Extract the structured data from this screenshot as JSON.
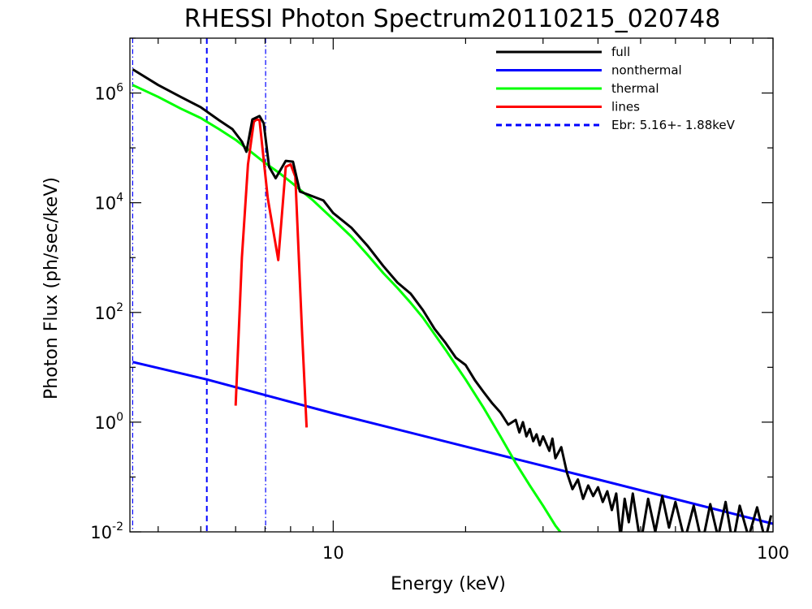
{
  "chart_data": {
    "type": "line",
    "title": "RHESSI Photon Spectrum20110215_020748",
    "xlabel": "Energy (keV)",
    "ylabel": "Photon Flux (ph/sec/keV)",
    "xscale": "log",
    "yscale": "log",
    "xlim": [
      3.45,
      100
    ],
    "ylim": [
      0.01,
      10000000.0
    ],
    "grid": false,
    "legend_position": "top-right",
    "x_ticks": [
      {
        "value": 10,
        "label": "10"
      },
      {
        "value": 100,
        "label": "100"
      }
    ],
    "y_ticks": [
      {
        "value": 0.01,
        "base": "10",
        "exp": "-2"
      },
      {
        "value": 1,
        "base": "10",
        "exp": "0"
      },
      {
        "value": 100,
        "base": "10",
        "exp": "2"
      },
      {
        "value": 10000,
        "base": "10",
        "exp": "4"
      },
      {
        "value": 1000000,
        "base": "10",
        "exp": "6"
      }
    ],
    "series": [
      {
        "name": "full",
        "color": "#000000",
        "points": [
          [
            3.5,
            2700000.0
          ],
          [
            4.0,
            1400000.0
          ],
          [
            4.5,
            850000.0
          ],
          [
            5.0,
            550000.0
          ],
          [
            5.5,
            320000.0
          ],
          [
            5.9,
            220000.0
          ],
          [
            6.2,
            130000.0
          ],
          [
            6.35,
            85000.0
          ],
          [
            6.55,
            330000.0
          ],
          [
            6.8,
            380000.0
          ],
          [
            6.95,
            280000.0
          ],
          [
            7.15,
            45000.0
          ],
          [
            7.4,
            28000.0
          ],
          [
            7.8,
            58000.0
          ],
          [
            8.1,
            56000.0
          ],
          [
            8.4,
            16000.0
          ],
          [
            9.0,
            13000.0
          ],
          [
            9.5,
            11000.0
          ],
          [
            10.0,
            6500.0
          ],
          [
            11.0,
            3500.0
          ],
          [
            12.0,
            1600.0
          ],
          [
            13.0,
            700
          ],
          [
            14.0,
            350
          ],
          [
            15.0,
            220
          ],
          [
            16.0,
            110
          ],
          [
            17.0,
            50
          ],
          [
            18.0,
            28
          ],
          [
            19.0,
            15
          ],
          [
            20.0,
            11
          ],
          [
            21.0,
            5.8
          ],
          [
            22.0,
            3.5
          ],
          [
            23.0,
            2.2
          ],
          [
            24.0,
            1.5
          ],
          [
            25.0,
            0.9
          ],
          [
            26.0,
            1.1
          ],
          [
            26.5,
            0.65
          ],
          [
            27.0,
            1.0
          ],
          [
            27.5,
            0.55
          ],
          [
            28.0,
            0.75
          ],
          [
            28.5,
            0.45
          ],
          [
            29.0,
            0.6
          ],
          [
            29.5,
            0.38
          ],
          [
            30.0,
            0.55
          ],
          [
            31.0,
            0.3
          ],
          [
            31.5,
            0.5
          ],
          [
            32.0,
            0.22
          ],
          [
            33.0,
            0.35
          ],
          [
            34.0,
            0.12
          ],
          [
            35.0,
            0.06
          ],
          [
            36.0,
            0.09
          ],
          [
            37.0,
            0.04
          ],
          [
            38.0,
            0.07
          ],
          [
            39.0,
            0.045
          ],
          [
            40.0,
            0.065
          ],
          [
            41.0,
            0.035
          ],
          [
            42.0,
            0.055
          ],
          [
            43.0,
            0.025
          ],
          [
            44.0,
            0.05
          ],
          [
            45.0,
            0.008
          ],
          [
            46.0,
            0.04
          ],
          [
            47.0,
            0.015
          ],
          [
            48.0,
            0.05
          ],
          [
            50.0,
            0.006
          ],
          [
            52.0,
            0.04
          ],
          [
            54.0,
            0.01
          ],
          [
            56.0,
            0.045
          ],
          [
            58.0,
            0.012
          ],
          [
            60.0,
            0.035
          ],
          [
            63.0,
            0.007
          ],
          [
            66.0,
            0.03
          ],
          [
            69.0,
            0.006
          ],
          [
            72.0,
            0.032
          ],
          [
            75.0,
            0.008
          ],
          [
            78.0,
            0.035
          ],
          [
            81.0,
            0.006
          ],
          [
            84.0,
            0.03
          ],
          [
            88.0,
            0.008
          ],
          [
            92.0,
            0.028
          ],
          [
            96.0,
            0.007
          ],
          [
            99.0,
            0.02
          ]
        ]
      },
      {
        "name": "nonthermal",
        "color": "#0000ff",
        "points": [
          [
            3.5,
            12.5
          ],
          [
            5.16,
            6.0
          ],
          [
            10.0,
            1.45
          ],
          [
            20.0,
            0.36
          ],
          [
            40.0,
            0.09
          ],
          [
            100.0,
            0.014
          ]
        ]
      },
      {
        "name": "thermal",
        "color": "#00ff00",
        "points": [
          [
            3.5,
            1400000.0
          ],
          [
            4.0,
            850000.0
          ],
          [
            4.5,
            520000.0
          ],
          [
            5.0,
            350000.0
          ],
          [
            5.5,
            220000.0
          ],
          [
            6.0,
            140000.0
          ],
          [
            6.5,
            85000.0
          ],
          [
            7.0,
            53000.0
          ],
          [
            7.5,
            36000.0
          ],
          [
            8.0,
            24000.0
          ],
          [
            9.0,
            11000.0
          ],
          [
            10.0,
            5000.0
          ],
          [
            11.0,
            2400.0
          ],
          [
            12.0,
            1100.0
          ],
          [
            13.0,
            520
          ],
          [
            14.0,
            280
          ],
          [
            15.0,
            150
          ],
          [
            16.0,
            80
          ],
          [
            17.0,
            40
          ],
          [
            18.0,
            21
          ],
          [
            19.0,
            11
          ],
          [
            20.0,
            6.0
          ],
          [
            22.0,
            1.8
          ],
          [
            24.0,
            0.55
          ],
          [
            26.0,
            0.18
          ],
          [
            28.0,
            0.07
          ],
          [
            30.0,
            0.03
          ],
          [
            32.0,
            0.013
          ],
          [
            33.0,
            0.0095
          ]
        ]
      },
      {
        "name": "lines",
        "color": "#ff0000",
        "points": [
          [
            6.0,
            2.0
          ],
          [
            6.2,
            1000.0
          ],
          [
            6.4,
            50000.0
          ],
          [
            6.6,
            300000.0
          ],
          [
            6.7,
            330000.0
          ],
          [
            6.8,
            320000.0
          ],
          [
            7.1,
            12000.0
          ],
          [
            7.5,
            900
          ],
          [
            7.8,
            45000.0
          ],
          [
            8.0,
            50000.0
          ],
          [
            8.2,
            30000.0
          ],
          [
            8.5,
            40
          ],
          [
            8.7,
            0.8
          ]
        ]
      },
      {
        "name": "Ebr:   5.16+-  1.88keV",
        "color": "#0000ff",
        "style": "dashed-vertical",
        "x": 5.16
      }
    ],
    "markers": [
      {
        "x": 3.5,
        "color": "#0000ff",
        "style": "dash-dot-vertical"
      },
      {
        "x": 7.02,
        "color": "#0000ff",
        "style": "dash-dot-vertical"
      }
    ]
  }
}
